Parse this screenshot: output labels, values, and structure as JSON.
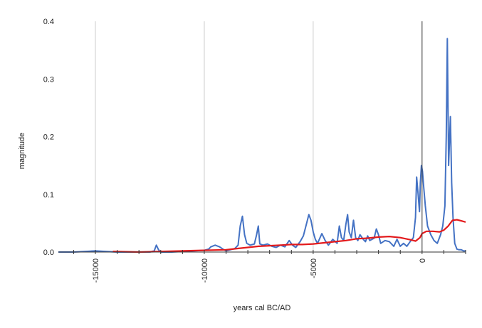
{
  "chart_data": {
    "type": "line",
    "xlabel": "years cal BC/AD",
    "ylabel": "magnitude",
    "xlim": [
      -16700,
      2000
    ],
    "ylim": [
      0,
      0.4
    ],
    "x_ticks": [
      {
        "value": -15000,
        "label": "-15000"
      },
      {
        "value": -10000,
        "label": "-10000"
      },
      {
        "value": -5000,
        "label": "-5000"
      },
      {
        "value": 0,
        "label": "0"
      }
    ],
    "y_ticks": [
      {
        "value": 0,
        "label": "0.0"
      },
      {
        "value": 0.1,
        "label": "0.1"
      },
      {
        "value": 0.2,
        "label": "0.2"
      },
      {
        "value": 0.3,
        "label": "0.3"
      },
      {
        "value": 0.4,
        "label": "0.4"
      }
    ],
    "vertical_gridlines": [
      -15000,
      -10000,
      -5000
    ],
    "zero_line": 0,
    "series": [
      {
        "color": "#4472c4",
        "points": [
          [
            -16700,
            0.0
          ],
          [
            -16000,
            0.0
          ],
          [
            -15500,
            0.001
          ],
          [
            -15000,
            0.002
          ],
          [
            -14500,
            0.001
          ],
          [
            -14000,
            0.0
          ],
          [
            -13000,
            0.0
          ],
          [
            -12500,
            0.0
          ],
          [
            -12300,
            0.002
          ],
          [
            -12200,
            0.012
          ],
          [
            -12100,
            0.004
          ],
          [
            -12000,
            0.0
          ],
          [
            -11500,
            0.0
          ],
          [
            -11000,
            0.001
          ],
          [
            -10500,
            0.002
          ],
          [
            -10000,
            0.003
          ],
          [
            -9800,
            0.005
          ],
          [
            -9700,
            0.009
          ],
          [
            -9500,
            0.012
          ],
          [
            -9300,
            0.009
          ],
          [
            -9100,
            0.004
          ],
          [
            -9000,
            0.002
          ],
          [
            -8800,
            0.004
          ],
          [
            -8600,
            0.006
          ],
          [
            -8450,
            0.012
          ],
          [
            -8350,
            0.045
          ],
          [
            -8250,
            0.062
          ],
          [
            -8150,
            0.03
          ],
          [
            -8050,
            0.015
          ],
          [
            -7900,
            0.012
          ],
          [
            -7700,
            0.014
          ],
          [
            -7600,
            0.03
          ],
          [
            -7520,
            0.045
          ],
          [
            -7450,
            0.014
          ],
          [
            -7300,
            0.012
          ],
          [
            -7100,
            0.014
          ],
          [
            -6900,
            0.01
          ],
          [
            -6700,
            0.008
          ],
          [
            -6500,
            0.012
          ],
          [
            -6300,
            0.009
          ],
          [
            -6100,
            0.02
          ],
          [
            -5950,
            0.012
          ],
          [
            -5800,
            0.008
          ],
          [
            -5600,
            0.018
          ],
          [
            -5450,
            0.028
          ],
          [
            -5300,
            0.05
          ],
          [
            -5200,
            0.065
          ],
          [
            -5100,
            0.055
          ],
          [
            -5000,
            0.035
          ],
          [
            -4900,
            0.022
          ],
          [
            -4800,
            0.015
          ],
          [
            -4600,
            0.032
          ],
          [
            -4450,
            0.02
          ],
          [
            -4300,
            0.012
          ],
          [
            -4100,
            0.022
          ],
          [
            -3900,
            0.015
          ],
          [
            -3800,
            0.045
          ],
          [
            -3700,
            0.025
          ],
          [
            -3600,
            0.02
          ],
          [
            -3500,
            0.048
          ],
          [
            -3420,
            0.065
          ],
          [
            -3350,
            0.035
          ],
          [
            -3250,
            0.025
          ],
          [
            -3150,
            0.055
          ],
          [
            -3050,
            0.025
          ],
          [
            -2950,
            0.02
          ],
          [
            -2850,
            0.03
          ],
          [
            -2700,
            0.022
          ],
          [
            -2600,
            0.018
          ],
          [
            -2500,
            0.028
          ],
          [
            -2400,
            0.02
          ],
          [
            -2200,
            0.024
          ],
          [
            -2100,
            0.04
          ],
          [
            -2000,
            0.03
          ],
          [
            -1900,
            0.015
          ],
          [
            -1700,
            0.02
          ],
          [
            -1500,
            0.018
          ],
          [
            -1300,
            0.01
          ],
          [
            -1150,
            0.022
          ],
          [
            -1000,
            0.01
          ],
          [
            -850,
            0.015
          ],
          [
            -700,
            0.01
          ],
          [
            -550,
            0.018
          ],
          [
            -400,
            0.025
          ],
          [
            -300,
            0.06
          ],
          [
            -250,
            0.13
          ],
          [
            -180,
            0.1
          ],
          [
            -120,
            0.07
          ],
          [
            -80,
            0.12
          ],
          [
            -30,
            0.15
          ],
          [
            20,
            0.14
          ],
          [
            80,
            0.11
          ],
          [
            150,
            0.08
          ],
          [
            250,
            0.045
          ],
          [
            400,
            0.03
          ],
          [
            550,
            0.02
          ],
          [
            700,
            0.015
          ],
          [
            850,
            0.03
          ],
          [
            950,
            0.045
          ],
          [
            1050,
            0.08
          ],
          [
            1110,
            0.2
          ],
          [
            1160,
            0.37
          ],
          [
            1220,
            0.15
          ],
          [
            1300,
            0.235
          ],
          [
            1360,
            0.12
          ],
          [
            1420,
            0.06
          ],
          [
            1500,
            0.015
          ],
          [
            1600,
            0.005
          ],
          [
            1700,
            0.004
          ],
          [
            1800,
            0.004
          ],
          [
            1900,
            0.002
          ],
          [
            2000,
            0.002
          ]
        ]
      },
      {
        "color": "#e31a1c",
        "points": [
          [
            -14200,
            0.001
          ],
          [
            -13000,
            0.0
          ],
          [
            -12000,
            0.001
          ],
          [
            -11000,
            0.002
          ],
          [
            -10000,
            0.003
          ],
          [
            -9000,
            0.004
          ],
          [
            -8500,
            0.006
          ],
          [
            -8000,
            0.008
          ],
          [
            -7500,
            0.01
          ],
          [
            -7000,
            0.011
          ],
          [
            -6500,
            0.012
          ],
          [
            -6000,
            0.013
          ],
          [
            -5500,
            0.013
          ],
          [
            -5000,
            0.014
          ],
          [
            -4500,
            0.016
          ],
          [
            -4000,
            0.018
          ],
          [
            -3500,
            0.02
          ],
          [
            -3000,
            0.023
          ],
          [
            -2500,
            0.024
          ],
          [
            -2000,
            0.026
          ],
          [
            -1500,
            0.027
          ],
          [
            -1000,
            0.025
          ],
          [
            -500,
            0.021
          ],
          [
            -300,
            0.019
          ],
          [
            -100,
            0.025
          ],
          [
            0,
            0.032
          ],
          [
            200,
            0.036
          ],
          [
            500,
            0.036
          ],
          [
            800,
            0.035
          ],
          [
            1000,
            0.038
          ],
          [
            1200,
            0.045
          ],
          [
            1400,
            0.055
          ],
          [
            1600,
            0.056
          ],
          [
            1800,
            0.054
          ],
          [
            2000,
            0.052
          ]
        ]
      }
    ]
  }
}
